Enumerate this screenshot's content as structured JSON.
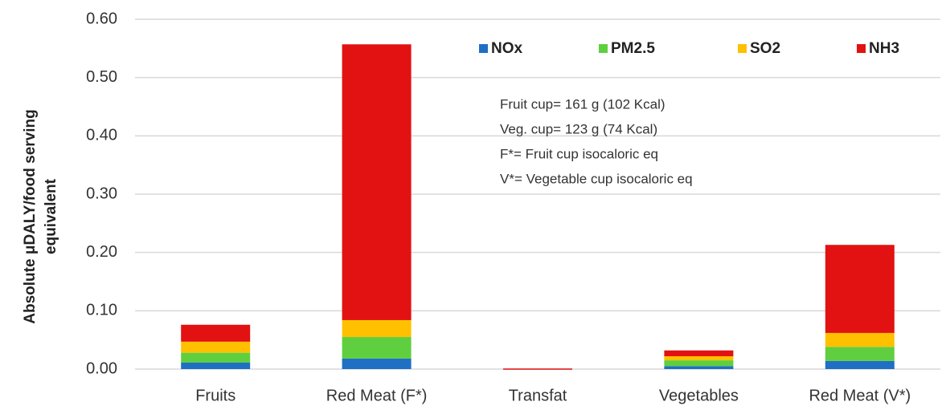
{
  "chart_data": {
    "type": "stacked_bar",
    "ylabel": [
      "Absolute μDALY/food serving",
      "equivalent"
    ],
    "categories": [
      "Fruits",
      "Red Meat (F*)",
      "Transfat",
      "Vegetables",
      "Red Meat (V*)"
    ],
    "series": [
      {
        "name": "NOx",
        "color": "#1f6fc5",
        "values": [
          0.011,
          0.018,
          0,
          0.005,
          0.014
        ]
      },
      {
        "name": "PM2.5",
        "color": "#5fcf3f",
        "values": [
          0.017,
          0.037,
          0,
          0.01,
          0.024
        ]
      },
      {
        "name": "SO2",
        "color": "#ffc000",
        "values": [
          0.019,
          0.029,
          0,
          0.007,
          0.024
        ]
      },
      {
        "name": "NH3",
        "color": "#e21212",
        "values": [
          0.029,
          0.473,
          0.001,
          0.01,
          0.151
        ]
      }
    ],
    "ylim": [
      0,
      0.6
    ],
    "yticks": [
      {
        "value": 0,
        "label": "0.00"
      },
      {
        "value": 0.1,
        "label": "0.10"
      },
      {
        "value": 0.2,
        "label": "0.20"
      },
      {
        "value": 0.3,
        "label": "0.30"
      },
      {
        "value": 0.4,
        "label": "0.40"
      },
      {
        "value": 0.5,
        "label": "0.50"
      },
      {
        "value": 0.6,
        "label": "0.60"
      }
    ],
    "grid": true,
    "legend": "top-right",
    "annotations": [
      "Fruit cup= 161 g (102 Kcal)",
      "Veg. cup= 123 g (74 Kcal)",
      "F*= Fruit cup isocaloric eq",
      "V*= Vegetable cup isocaloric eq"
    ]
  }
}
